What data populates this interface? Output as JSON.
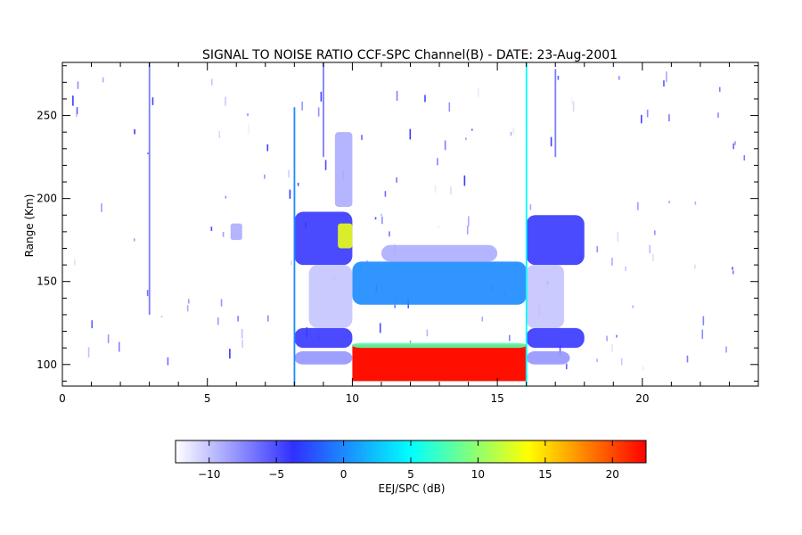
{
  "chart_data": {
    "type": "heatmap",
    "title": "SIGNAL TO NOISE RATIO CCF-SPC Channel(B) - DATE: 23-Aug-2001",
    "xlabel": "",
    "ylabel": "Range (Km)",
    "xlim": [
      0,
      24
    ],
    "ylim": [
      87,
      282
    ],
    "x_ticks": [
      0,
      5,
      10,
      15,
      20
    ],
    "y_ticks": [
      100,
      150,
      200,
      250
    ],
    "colorbar": {
      "label": "EEJ/SPC (dB)",
      "range": [
        -12.5,
        22.5
      ],
      "ticks": [
        -10,
        -5,
        0,
        5,
        10,
        15,
        20
      ],
      "colormap": [
        "#ffffff",
        "#3030ff",
        "#00ffff",
        "#ffff00",
        "#ff0000"
      ]
    },
    "regions": [
      {
        "name": "eej-core",
        "x": [
          10.0,
          16.0
        ],
        "y": [
          90,
          112
        ],
        "snr_db": 22
      },
      {
        "name": "eej-top-edge",
        "x": [
          10.0,
          16.0
        ],
        "y": [
          110,
          113
        ],
        "snr_db": 8
      },
      {
        "name": "150km-echo",
        "x": [
          10.0,
          16.0
        ],
        "y": [
          136,
          162
        ],
        "snr_db": 0
      },
      {
        "name": "150km-echo-fringe",
        "x": [
          11.0,
          15.0
        ],
        "y": [
          162,
          172
        ],
        "snr_db": -9
      },
      {
        "name": "morning-layer-upper",
        "x": [
          8.0,
          10.0
        ],
        "y": [
          160,
          192
        ],
        "snr_db": -4
      },
      {
        "name": "morning-layer-peak",
        "x": [
          9.5,
          10.0
        ],
        "y": [
          170,
          185
        ],
        "snr_db": 13
      },
      {
        "name": "morning-layer-lower",
        "x": [
          8.0,
          10.0
        ],
        "y": [
          110,
          122
        ],
        "snr_db": -4
      },
      {
        "name": "morning-layer-base",
        "x": [
          8.0,
          10.0
        ],
        "y": [
          100,
          108
        ],
        "snr_db": -8
      },
      {
        "name": "morning-spread",
        "x": [
          8.5,
          10.0
        ],
        "y": [
          122,
          160
        ],
        "snr_db": -10
      },
      {
        "name": "morning-high",
        "x": [
          9.4,
          10.0
        ],
        "y": [
          195,
          240
        ],
        "snr_db": -9
      },
      {
        "name": "evening-layer-upper",
        "x": [
          16.0,
          18.0
        ],
        "y": [
          160,
          190
        ],
        "snr_db": -4
      },
      {
        "name": "evening-layer-lower",
        "x": [
          16.0,
          18.0
        ],
        "y": [
          110,
          122
        ],
        "snr_db": -4
      },
      {
        "name": "evening-layer-base",
        "x": [
          16.0,
          17.5
        ],
        "y": [
          100,
          108
        ],
        "snr_db": -8
      },
      {
        "name": "evening-spread",
        "x": [
          16.0,
          17.3
        ],
        "y": [
          122,
          160
        ],
        "snr_db": -10
      },
      {
        "name": "blob-6h",
        "x": [
          5.8,
          6.2
        ],
        "y": [
          175,
          185
        ],
        "snr_db": -9
      }
    ],
    "vertical_streaks": [
      {
        "x": 3.0,
        "y": [
          130,
          282
        ],
        "snr_db": -7
      },
      {
        "x": 8.0,
        "y": [
          87,
          255
        ],
        "snr_db": 0
      },
      {
        "x": 9.0,
        "y": [
          225,
          282
        ],
        "snr_db": -7
      },
      {
        "x": 16.0,
        "y": [
          87,
          282
        ],
        "snr_db": 5
      },
      {
        "x": 17.0,
        "y": [
          225,
          278
        ],
        "snr_db": -7
      }
    ]
  }
}
